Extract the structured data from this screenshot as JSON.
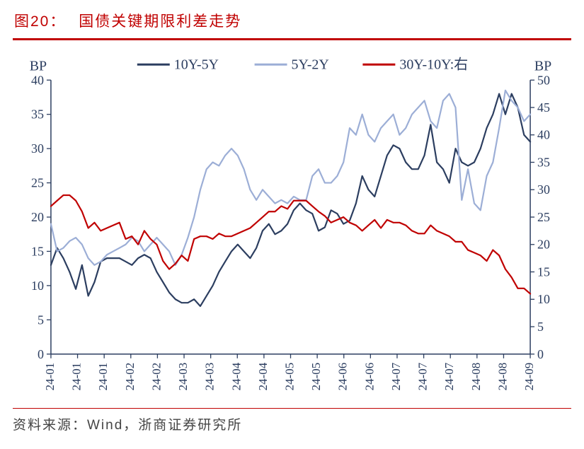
{
  "title_label": "图20：",
  "title_text": "国债关键期限利差走势",
  "source": "资料来源：Wind，浙商证券研究所",
  "chart": {
    "type": "line",
    "left_axis": {
      "label": "BP",
      "min": 0,
      "max": 40,
      "step": 5,
      "ticks": [
        0,
        5,
        10,
        15,
        20,
        25,
        30,
        35,
        40
      ]
    },
    "right_axis": {
      "label": "BP",
      "min": 0,
      "max": 50,
      "step": 5,
      "ticks": [
        0,
        5,
        10,
        15,
        20,
        25,
        30,
        35,
        40,
        45,
        50
      ]
    },
    "x_labels": [
      "24-01",
      "24-01",
      "24-01",
      "24-02",
      "24-02",
      "24-03",
      "24-03",
      "24-04",
      "24-04",
      "24-05",
      "24-05",
      "24-06",
      "24-06",
      "24-07",
      "24-07",
      "24-07",
      "24-08",
      "24-08",
      "24-09"
    ],
    "colors": {
      "s1": "#2c3e60",
      "s2": "#9caed6",
      "s3": "#c00000",
      "axis": "#2c3e60",
      "grid": "#2c3e60",
      "bg": "#ffffff"
    },
    "line_width": 2.2,
    "series": [
      {
        "name": "10Y-5Y",
        "axis": "left",
        "color": "#2c3e60",
        "values": [
          13,
          15.5,
          14,
          12,
          9.5,
          13,
          8.5,
          10.5,
          13.5,
          14,
          14,
          14,
          13.5,
          13,
          14,
          14.5,
          14,
          12,
          10.5,
          9,
          8,
          7.5,
          7.5,
          8,
          7,
          8.5,
          10,
          12,
          13.5,
          15,
          16,
          15,
          14,
          15.5,
          18,
          19,
          17.5,
          18,
          19,
          21,
          22,
          21,
          20.5,
          18,
          18.5,
          21,
          20.5,
          19,
          19.5,
          22,
          26,
          24,
          23,
          26,
          29,
          30.5,
          30,
          28,
          27,
          27,
          29,
          33.5,
          28,
          27,
          25,
          30,
          28,
          27.5,
          28,
          30,
          33,
          35,
          38,
          35,
          38,
          36,
          32,
          31
        ]
      },
      {
        "name": "5Y-2Y",
        "axis": "left",
        "color": "#9caed6",
        "values": [
          19,
          15,
          15.5,
          16.5,
          17,
          16,
          14,
          13,
          13.5,
          14.5,
          15,
          15.5,
          16,
          17,
          16.5,
          15,
          16,
          17,
          16,
          15,
          13,
          14.5,
          17,
          20,
          24,
          27,
          28,
          27.5,
          29,
          30,
          29,
          27,
          24,
          22.5,
          24,
          23,
          22,
          22.5,
          22,
          23,
          22.5,
          22.5,
          26,
          27,
          25,
          25,
          26,
          28,
          33,
          32,
          35,
          32,
          31,
          33,
          34,
          35,
          32,
          33,
          35,
          36,
          37,
          34,
          33,
          37,
          38,
          36,
          22.5,
          27,
          22,
          21,
          26,
          28,
          33,
          38.5,
          37,
          36,
          34,
          35
        ]
      },
      {
        "name": "30Y-10Y:右",
        "axis": "right",
        "color": "#c00000",
        "values": [
          27,
          28,
          29,
          29,
          28,
          26,
          23,
          24,
          22.5,
          23,
          23.5,
          24,
          21,
          21.5,
          20,
          22.5,
          21,
          20,
          17,
          15.5,
          16.5,
          18,
          17,
          21,
          21.5,
          21.5,
          21,
          22,
          21.5,
          21.5,
          22,
          22.5,
          23,
          24,
          25,
          26,
          26,
          27,
          26.5,
          28,
          28,
          28,
          27,
          26,
          25.2,
          24,
          24.5,
          25,
          24,
          23.5,
          22.5,
          23.5,
          24.5,
          23,
          24.5,
          24,
          24,
          23.5,
          22.5,
          22,
          22,
          23.5,
          22.5,
          22,
          21.5,
          20.5,
          20.5,
          19,
          18.5,
          18,
          17,
          19,
          18,
          15.5,
          14,
          12,
          12,
          11
        ]
      }
    ],
    "legend": [
      "10Y-5Y",
      "5Y-2Y",
      "30Y-10Y:右"
    ]
  }
}
